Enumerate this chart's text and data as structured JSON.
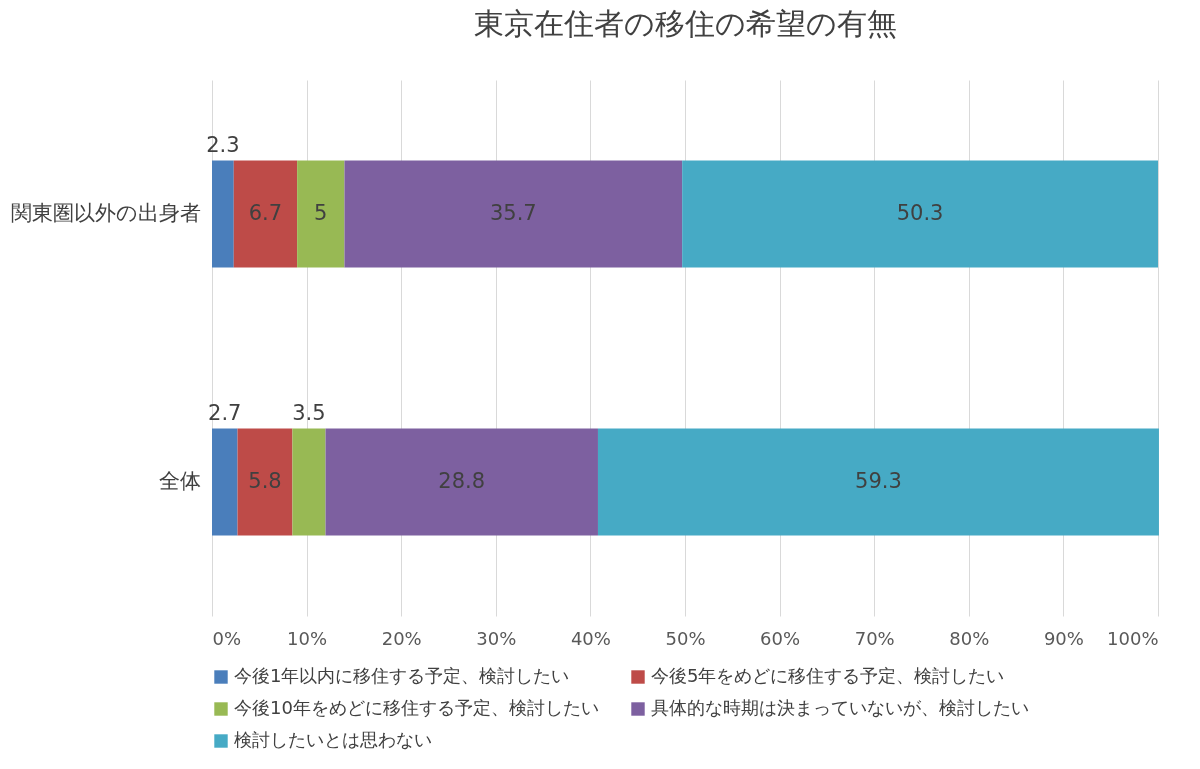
{
  "chart_data": {
    "type": "bar",
    "title": "東京在住者の移住の希望の有無",
    "orientation": "horizontal",
    "stacked": true,
    "categories": [
      "関東圏以外の出身者",
      "全体"
    ],
    "series": [
      {
        "name": "今後1年以内に移住する予定、検討したい",
        "color": "#4a7ebb",
        "values": [
          2.3,
          2.7
        ]
      },
      {
        "name": "今後5年をめどに移住する予定、検討したい",
        "color": "#be4b48",
        "values": [
          6.7,
          5.8
        ]
      },
      {
        "name": "今後10年をめどに移住する予定、検討したい",
        "color": "#98b954",
        "values": [
          5,
          3.5
        ]
      },
      {
        "name": "具体的な時期は決まっていないが、検討したい",
        "color": "#7d60a0",
        "values": [
          35.7,
          28.8
        ]
      },
      {
        "name": "検討したいとは思わない",
        "color": "#46aac5",
        "values": [
          50.3,
          59.3
        ]
      }
    ],
    "xlim": [
      0,
      100
    ],
    "xticks": [
      {
        "value": 0,
        "label": "0%"
      },
      {
        "value": 10,
        "label": "10%"
      },
      {
        "value": 20,
        "label": "20%"
      },
      {
        "value": 30,
        "label": "30%"
      },
      {
        "value": 40,
        "label": "40%"
      },
      {
        "value": 50,
        "label": "50%"
      },
      {
        "value": 60,
        "label": "60%"
      },
      {
        "value": 70,
        "label": "70%"
      },
      {
        "value": 80,
        "label": "80%"
      },
      {
        "value": 90,
        "label": "90%"
      },
      {
        "value": 100,
        "label": "100%"
      }
    ],
    "grid": "x",
    "legend": "bottom",
    "data_labels": true
  }
}
